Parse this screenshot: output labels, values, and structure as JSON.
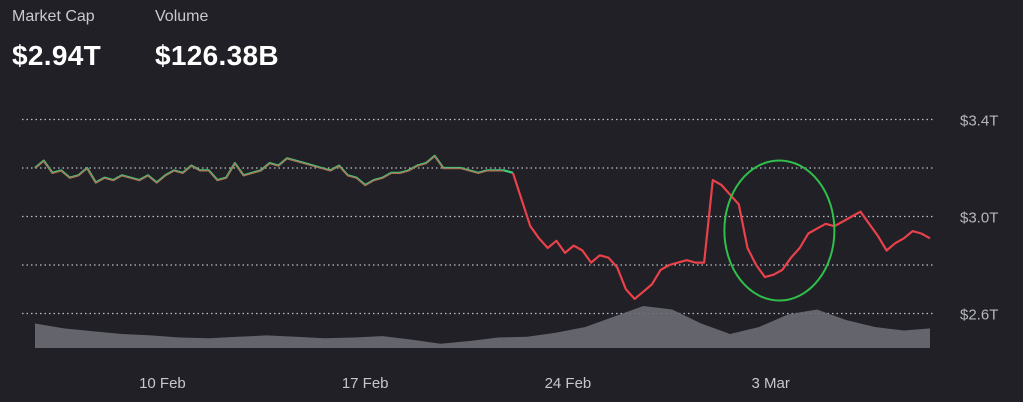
{
  "stats": {
    "market_cap": {
      "label": "Market Cap",
      "value": "$2.94T"
    },
    "volume": {
      "label": "Volume",
      "value": "$126.38B"
    }
  },
  "colors": {
    "background": "#202026",
    "up": "#3ad07a",
    "down": "#e8414a",
    "grid": "#d8d8e0",
    "volume_fill": "#6b6b76",
    "highlight_ring": "#2fbf4a"
  },
  "chart_data": {
    "type": "line",
    "title": "",
    "xlabel": "",
    "ylabel": "",
    "ylim": [
      2.55,
      3.45
    ],
    "y_ticks": [
      {
        "value": 3.4,
        "label": "$3.4T"
      },
      {
        "value": 3.2,
        "label": ""
      },
      {
        "value": 3.0,
        "label": "$3.0T"
      },
      {
        "value": 2.8,
        "label": ""
      },
      {
        "value": 2.6,
        "label": "$2.6T"
      }
    ],
    "x_ticks": [
      {
        "day": 10,
        "label": "10 Feb"
      },
      {
        "day": 17,
        "label": "17 Feb"
      },
      {
        "day": 24,
        "label": "24 Feb"
      },
      {
        "day": 31,
        "label": "3 Mar"
      }
    ],
    "x_range_days": [
      5.6,
      36.5
    ],
    "series": [
      {
        "x": [
          5.6,
          5.9,
          6.2,
          6.5,
          6.8,
          7.1,
          7.4,
          7.7,
          8.0,
          8.3,
          8.6,
          8.9,
          9.2,
          9.5,
          9.8,
          10.1,
          10.4,
          10.7,
          11.0,
          11.3,
          11.6,
          11.9,
          12.2,
          12.5,
          12.8,
          13.1,
          13.4,
          13.7,
          14.0,
          14.3,
          14.6,
          14.9,
          15.2,
          15.5,
          15.8,
          16.1,
          16.4,
          16.7,
          17.0,
          17.3,
          17.6,
          17.9,
          18.2,
          18.5,
          18.8,
          19.1,
          19.4,
          19.7,
          20.0,
          20.3,
          20.6,
          20.9,
          21.2,
          21.5,
          21.8,
          22.1,
          22.4,
          22.7,
          23.0,
          23.3,
          23.6,
          23.9,
          24.2,
          24.5,
          24.8,
          25.1,
          25.4,
          25.7,
          26.0,
          26.3,
          26.6,
          26.9,
          27.2,
          27.5,
          27.8,
          28.1,
          28.4,
          28.7,
          29.0,
          29.3,
          29.6,
          29.9,
          30.2,
          30.5,
          30.8,
          31.1,
          31.4,
          31.7,
          32.0,
          32.3,
          32.6,
          32.9,
          33.2,
          33.5,
          33.8,
          34.1,
          34.4,
          34.7,
          35.0,
          35.3,
          35.6,
          35.9,
          36.2,
          36.5
        ],
        "values": [
          3.2,
          3.23,
          3.18,
          3.19,
          3.16,
          3.17,
          3.2,
          3.14,
          3.16,
          3.15,
          3.17,
          3.16,
          3.15,
          3.17,
          3.14,
          3.17,
          3.19,
          3.18,
          3.21,
          3.19,
          3.19,
          3.15,
          3.16,
          3.22,
          3.17,
          3.18,
          3.19,
          3.22,
          3.21,
          3.24,
          3.23,
          3.22,
          3.21,
          3.2,
          3.19,
          3.21,
          3.17,
          3.16,
          3.13,
          3.15,
          3.16,
          3.18,
          3.18,
          3.19,
          3.21,
          3.22,
          3.25,
          3.2,
          3.2,
          3.2,
          3.19,
          3.18,
          3.19,
          3.19,
          3.19,
          3.18,
          3.07,
          2.96,
          2.91,
          2.87,
          2.9,
          2.85,
          2.88,
          2.86,
          2.81,
          2.84,
          2.83,
          2.79,
          2.7,
          2.66,
          2.69,
          2.72,
          2.78,
          2.8,
          2.81,
          2.82,
          2.81,
          2.81,
          3.15,
          3.13,
          3.09,
          3.05,
          2.87,
          2.8,
          2.75,
          2.76,
          2.78,
          2.83,
          2.87,
          2.93,
          2.95,
          2.97,
          2.96,
          2.98,
          3.0,
          3.02,
          2.97,
          2.92,
          2.86,
          2.89,
          2.91,
          2.94,
          2.93,
          2.91
        ],
        "up_until_x": 22.1
      }
    ],
    "volume_series": {
      "x": [
        5.6,
        6.6,
        7.6,
        8.6,
        9.6,
        10.6,
        11.6,
        12.6,
        13.6,
        14.6,
        15.6,
        16.6,
        17.6,
        18.6,
        19.6,
        20.6,
        21.6,
        22.6,
        23.6,
        24.6,
        25.6,
        26.6,
        27.6,
        28.6,
        29.6,
        30.6,
        31.6,
        32.6,
        33.6,
        34.6,
        35.6,
        36.5
      ],
      "relative": [
        0.35,
        0.28,
        0.24,
        0.2,
        0.18,
        0.15,
        0.14,
        0.16,
        0.18,
        0.16,
        0.14,
        0.15,
        0.17,
        0.12,
        0.06,
        0.1,
        0.15,
        0.16,
        0.22,
        0.3,
        0.45,
        0.6,
        0.55,
        0.35,
        0.2,
        0.3,
        0.48,
        0.55,
        0.4,
        0.3,
        0.25,
        0.28
      ]
    },
    "annotations": [
      {
        "type": "ellipse",
        "center_x_day": 31.3,
        "center_y": 3.0
      }
    ]
  }
}
